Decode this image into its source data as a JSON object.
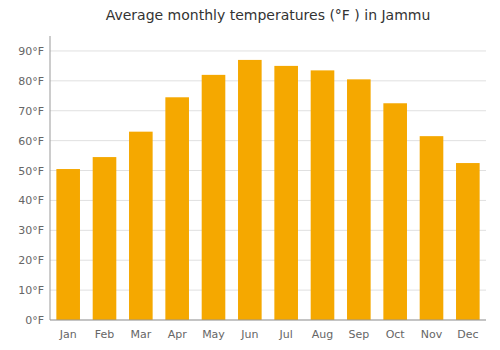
{
  "chart_data": {
    "type": "bar",
    "title": "Average monthly temperatures (°F ) in Jammu",
    "categories": [
      "Jan",
      "Feb",
      "Mar",
      "Apr",
      "May",
      "Jun",
      "Jul",
      "Aug",
      "Sep",
      "Oct",
      "Nov",
      "Dec"
    ],
    "values": [
      50.5,
      54.5,
      63.0,
      74.5,
      82.0,
      87.0,
      85.0,
      83.5,
      80.5,
      72.5,
      61.5,
      52.5
    ],
    "color": "#F5A800",
    "ylim": [
      0,
      95
    ],
    "yticks": [
      {
        "value": 0,
        "label": "0°F"
      },
      {
        "value": 10,
        "label": "10°F"
      },
      {
        "value": 20,
        "label": "20°F"
      },
      {
        "value": 30,
        "label": "30°F"
      },
      {
        "value": 40,
        "label": "40°F"
      },
      {
        "value": 50,
        "label": "50°F"
      },
      {
        "value": 60,
        "label": "60°F"
      },
      {
        "value": 70,
        "label": "70°F"
      },
      {
        "value": 80,
        "label": "80°F"
      },
      {
        "value": 90,
        "label": "90°F"
      }
    ],
    "grid": true
  }
}
